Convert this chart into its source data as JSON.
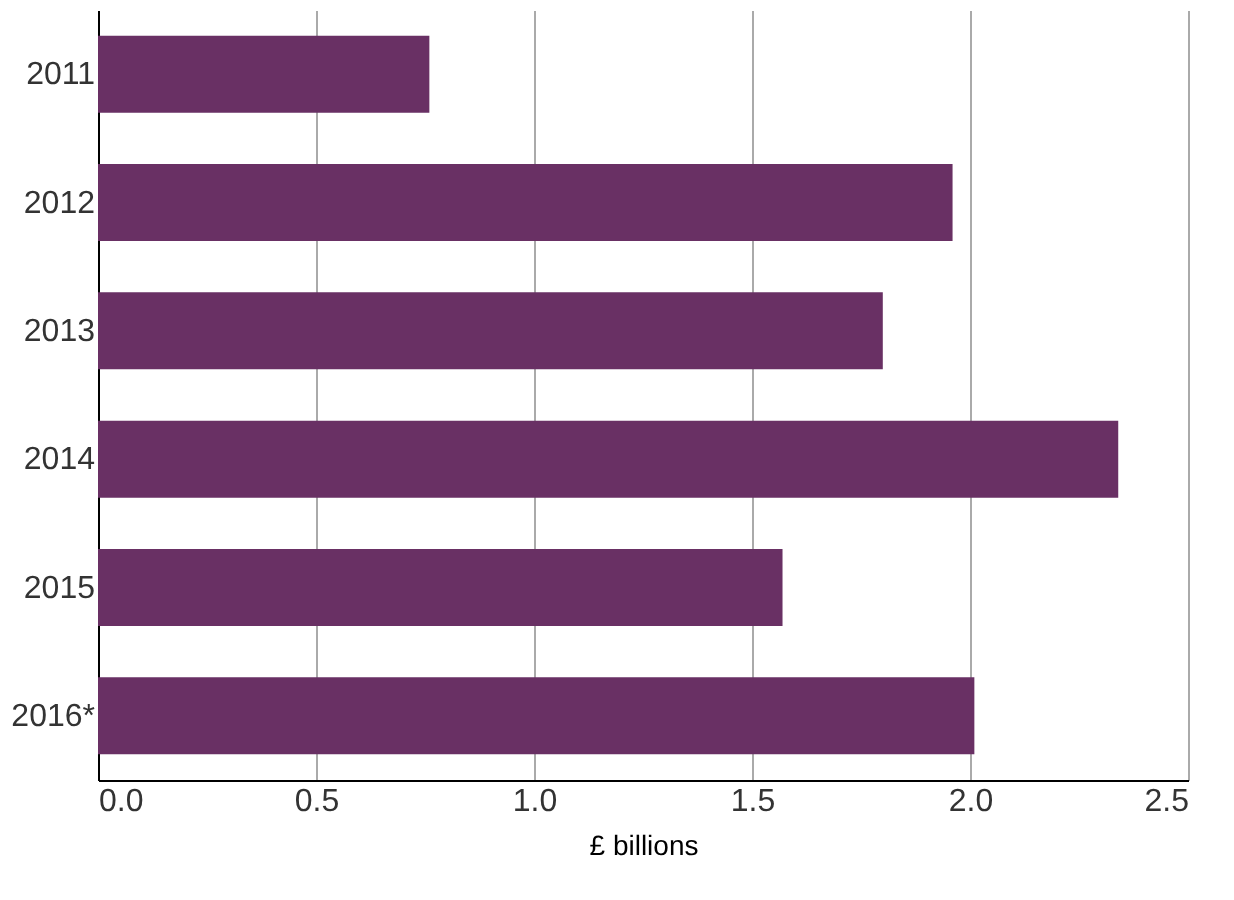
{
  "chart_data": {
    "type": "bar",
    "orientation": "horizontal",
    "xlabel": "£ billions",
    "categories": [
      "2011",
      "2012",
      "2013",
      "2014",
      "2015",
      "2016*"
    ],
    "values": [
      0.76,
      1.96,
      1.8,
      2.34,
      1.57,
      2.01
    ],
    "color": "#693064",
    "xlim": [
      0,
      2.5
    ],
    "xticks": [
      {
        "value": 0,
        "label": "0.0"
      },
      {
        "value": 0.5,
        "label": "0.5"
      },
      {
        "value": 1,
        "label": "1.0"
      },
      {
        "value": 1.5,
        "label": "1.5"
      },
      {
        "value": 2,
        "label": "2.0"
      },
      {
        "value": 2.5,
        "label": "2.5"
      }
    ],
    "grid": "x"
  }
}
